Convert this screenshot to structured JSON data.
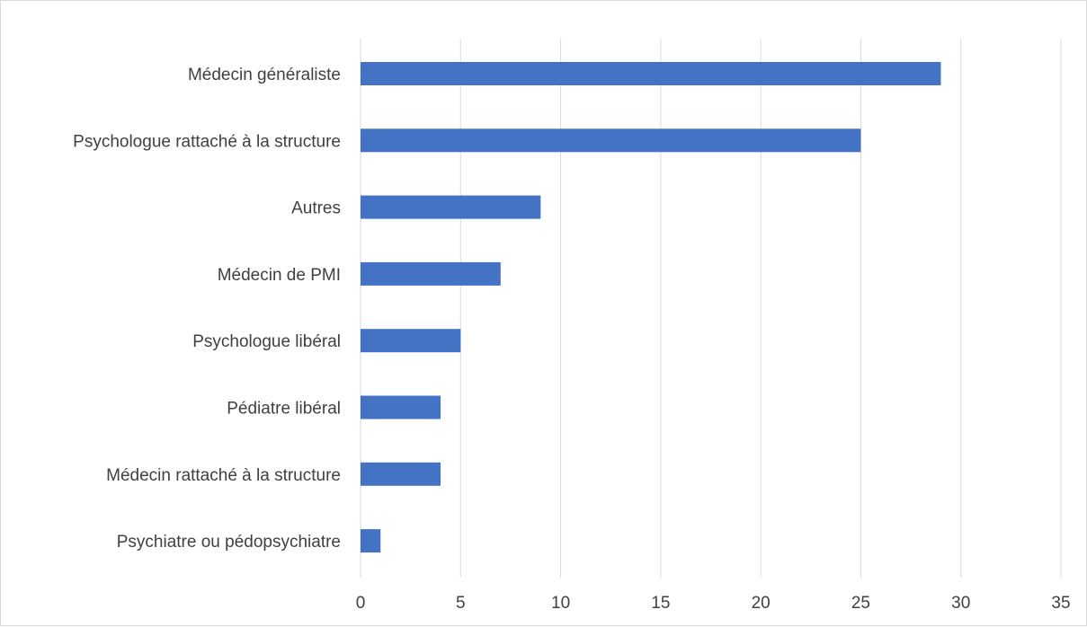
{
  "colors": {
    "bar": "#4472C4",
    "grid": "#d9d9d9",
    "text": "#404040",
    "border": "#d9d9d9"
  },
  "chart_data": {
    "type": "bar",
    "orientation": "horizontal",
    "title": "",
    "xlabel": "",
    "ylabel": "",
    "categories": [
      "Médecin généraliste",
      "Psychologue rattaché à la structure",
      "Autres",
      "Médecin de PMI",
      "Psychologue libéral",
      "Pédiatre libéral",
      "Médecin rattaché à la structure",
      "Psychiatre ou pédopsychiatre"
    ],
    "values": [
      29,
      25,
      9,
      7,
      5,
      4,
      4,
      1
    ],
    "xlim": [
      0,
      35
    ],
    "xticks": [
      0,
      5,
      10,
      15,
      20,
      25,
      30,
      35
    ],
    "grid": "vertical",
    "legend": "none"
  }
}
